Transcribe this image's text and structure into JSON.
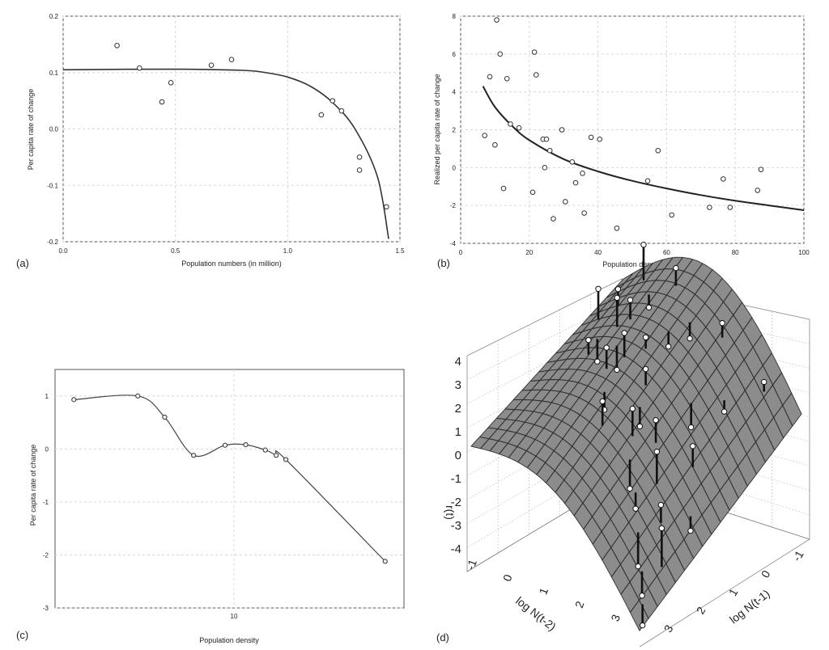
{
  "chart_data": [
    {
      "type": "scatter",
      "panel_label": "(a)",
      "xlabel": "Population numbers (in million)",
      "ylabel": "Per capita rate of change",
      "xlim": [
        0.0,
        1.5
      ],
      "ylim": [
        -0.2,
        0.2
      ],
      "xticks": [
        "0.0",
        "0.5",
        "1.0",
        "1.5"
      ],
      "yticks": [
        "0.2",
        "0.1",
        "0.0",
        "-0.1",
        "-0.2"
      ],
      "grid": true,
      "points": {
        "x": [
          0.24,
          0.34,
          0.44,
          0.48,
          0.66,
          0.75,
          1.15,
          1.2,
          1.24,
          1.32,
          1.32,
          1.44
        ],
        "y": [
          0.148,
          0.108,
          0.048,
          0.082,
          0.113,
          0.123,
          0.025,
          0.05,
          0.032,
          -0.05,
          -0.073,
          -0.138
        ]
      },
      "fit_curve": {
        "x": [
          0.0,
          0.5,
          0.8,
          0.9,
          1.0,
          1.1,
          1.2,
          1.3,
          1.4,
          1.45
        ],
        "y": [
          0.105,
          0.106,
          0.104,
          0.1,
          0.092,
          0.076,
          0.047,
          0.0,
          -0.085,
          -0.195
        ]
      }
    },
    {
      "type": "scatter",
      "panel_label": "(b)",
      "xlabel": "Population density",
      "ylabel": "Realized per capita rate of change",
      "xlim": [
        0,
        100
      ],
      "ylim": [
        -4,
        8
      ],
      "xticks": [
        "0",
        "20",
        "40",
        "60",
        "80",
        "100"
      ],
      "yticks": [
        "8",
        "6",
        "4",
        "2",
        "0",
        "-2",
        "-4"
      ],
      "grid": true,
      "points": {
        "x": [
          7,
          8.5,
          10,
          10.5,
          11.5,
          12.5,
          13.5,
          14.5,
          17,
          21,
          21.5,
          22,
          24,
          24.5,
          25,
          26,
          27,
          29.5,
          30.5,
          32.5,
          33.5,
          35.5,
          36,
          38,
          40.5,
          45.5,
          54.5,
          57.5,
          61.5,
          72.5,
          76.5,
          78.5,
          86.5,
          87.5
        ],
        "y": [
          1.7,
          4.8,
          1.2,
          7.8,
          6.0,
          -1.1,
          4.7,
          2.3,
          2.1,
          -1.3,
          6.1,
          4.9,
          1.5,
          0.0,
          1.5,
          0.9,
          -2.7,
          2.0,
          -1.8,
          0.3,
          -0.8,
          -0.3,
          -2.4,
          1.6,
          1.5,
          -3.2,
          -0.7,
          0.9,
          -2.5,
          -2.1,
          -0.6,
          -2.1,
          -1.2,
          -0.1
        ]
      },
      "fit_curve": {
        "x": [
          6.5,
          10,
          15,
          20,
          30,
          40,
          50,
          60,
          70,
          80,
          90,
          100
        ],
        "y": [
          4.3,
          3.2,
          2.2,
          1.45,
          0.45,
          -0.2,
          -0.7,
          -1.1,
          -1.45,
          -1.75,
          -2.0,
          -2.25
        ]
      }
    },
    {
      "type": "line",
      "panel_label": "(c)",
      "xlabel": "Population density",
      "ylabel": "Per capita rate of change",
      "xscale": "log",
      "ylim": [
        -3,
        1.5
      ],
      "xticks": [
        "10"
      ],
      "yticks": [
        "1",
        "0",
        "-1",
        "-2",
        "-3"
      ],
      "grid": true,
      "points": {
        "x": [
          1.5,
          3.2,
          4.4,
          6.2,
          9.0,
          11.5,
          14.5,
          16.5,
          18.5,
          60
        ],
        "y": [
          0.93,
          1.0,
          0.6,
          -0.12,
          0.07,
          0.08,
          -0.02,
          -0.12,
          -0.2,
          -2.12
        ]
      }
    },
    {
      "type": "surface",
      "panel_label": "(d)",
      "xlabel": "log N(t-2)",
      "ylabel": "log N(t-1)",
      "zlabel": "r(t)",
      "xticks": [
        "-1",
        "0",
        "1",
        "2",
        "3"
      ],
      "yticks": [
        "-1",
        "0",
        "1",
        "2",
        "3"
      ],
      "zticks": [
        "4",
        "3",
        "2",
        "1",
        "0",
        "-1",
        "-2",
        "-3",
        "-4"
      ]
    }
  ]
}
